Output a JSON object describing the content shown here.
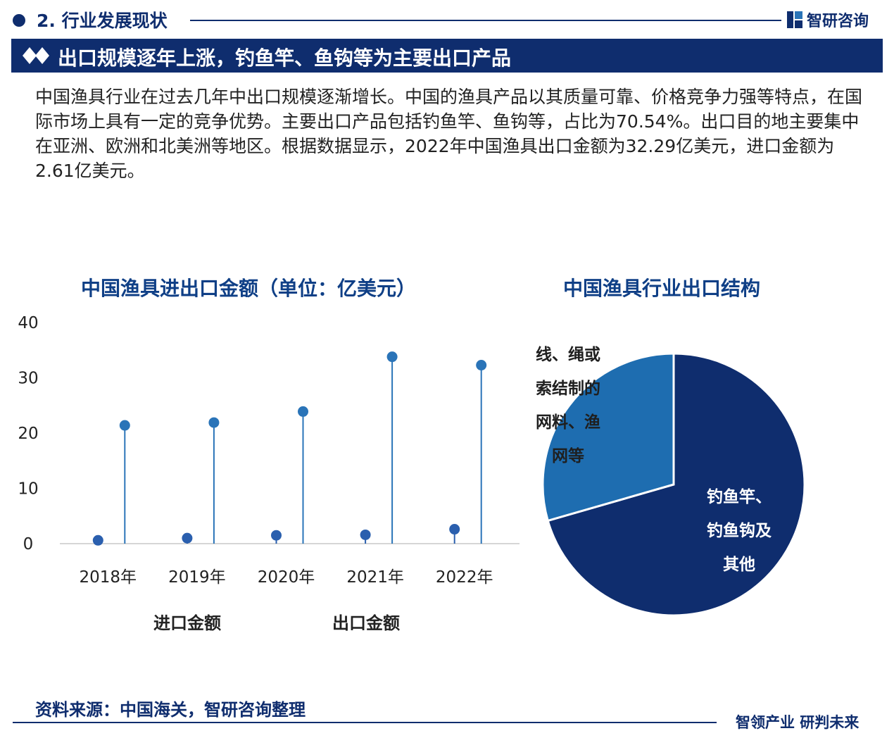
{
  "header": {
    "section_title": "2. 行业发展现状",
    "brand_name": "智研咨询",
    "banner_title": "出口规模逐年上涨，钓鱼竿、鱼钩等为主要出口产品"
  },
  "intro_text": "中国渔具行业在过去几年中出口规模逐渐增长。中国的渔具产品以其质量可靠、价格竞争力强等特点，在国际市场上具有一定的竞争优势。主要出口产品包括钓鱼竿、鱼钩等，占比为70.54%。出口目的地主要集中在亚洲、欧洲和北美洲等地区。根据数据显示，2022年中国渔具出口金额为32.29亿美元，进口金额为2.61亿美元。",
  "colors": {
    "navy": "#0f2d6e",
    "import_marker": "#2a5fae",
    "export_marker": "#2a74b8",
    "pie_main": "#0f2d6e",
    "pie_secondary": "#1e6db0"
  },
  "chart_data": [
    {
      "type": "lollipop",
      "title": "中国渔具进出口金额（单位：亿美元）",
      "categories": [
        "2018年",
        "2019年",
        "2020年",
        "2021年",
        "2022年"
      ],
      "y_ticks": [
        "0",
        "10",
        "20",
        "30",
        "40"
      ],
      "ylim": [
        0,
        40
      ],
      "series": [
        {
          "name": "进口金额",
          "values": [
            0.6,
            1.0,
            1.5,
            1.6,
            2.61
          ]
        },
        {
          "name": "出口金额",
          "values": [
            21.4,
            21.9,
            23.9,
            33.8,
            32.29
          ]
        }
      ]
    },
    {
      "type": "pie",
      "title": "中国渔具行业出口结构",
      "slices": [
        {
          "label": "钓鱼竿、钓鱼钩及其他",
          "value": 70.54,
          "lines": [
            "钓鱼竿、",
            "钓鱼钩及",
            "其他"
          ]
        },
        {
          "label": "线、绳或索结制的网料、渔网等",
          "value": 29.46,
          "lines": [
            "线、绳或",
            "索结制的",
            "网料、渔",
            "网等"
          ]
        }
      ]
    }
  ],
  "footer": {
    "source": "资料来源：中国海关，智研咨询整理",
    "slogan": "智领产业 研判未来"
  }
}
